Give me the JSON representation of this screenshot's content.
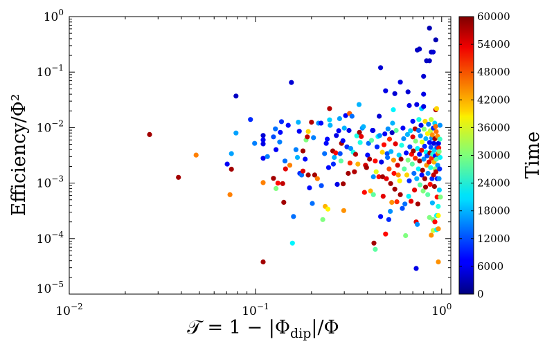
{
  "chart_data": {
    "type": "scatter",
    "title": "",
    "xlabel": "𝒯 = 1 − |Φdip|/Φ",
    "xlabel_main": "𝒯 = 1 − |Φ",
    "xlabel_sub": "dip",
    "xlabel_tail": "|/Φ",
    "ylabel": "Efficiency/Φ²",
    "xscale": "log",
    "yscale": "log",
    "xlim": [
      0.01,
      1.12
    ],
    "ylim": [
      1e-05,
      1
    ],
    "xticks": [
      {
        "value": 0.01,
        "base": "10",
        "exp": "−2"
      },
      {
        "value": 0.1,
        "base": "10",
        "exp": "−1"
      },
      {
        "value": 1,
        "base": "10",
        "exp": "0"
      }
    ],
    "yticks": [
      {
        "value": 1e-05,
        "base": "10",
        "exp": "−5"
      },
      {
        "value": 0.0001,
        "base": "10",
        "exp": "−4"
      },
      {
        "value": 0.001,
        "base": "10",
        "exp": "−3"
      },
      {
        "value": 0.01,
        "base": "10",
        "exp": "−2"
      },
      {
        "value": 0.1,
        "base": "10",
        "exp": "−1"
      },
      {
        "value": 1,
        "base": "10",
        "exp": "0"
      }
    ],
    "grid": false,
    "colorbar": {
      "label": "Time",
      "colormap": "jet",
      "range": [
        0,
        60000
      ],
      "ticks": [
        "0",
        "6000",
        "12000",
        "18000",
        "24000",
        "30000",
        "36000",
        "42000",
        "48000",
        "54000",
        "60000"
      ]
    },
    "points_columns": [
      "T",
      "efficiency",
      "time"
    ],
    "points": [
      [
        0.027,
        0.0075,
        58000
      ],
      [
        0.0386,
        0.00127,
        58000
      ],
      [
        0.048,
        0.0032,
        45000
      ],
      [
        0.0705,
        0.0022,
        7000
      ],
      [
        0.073,
        0.00062,
        45000
      ],
      [
        0.0743,
        0.00178,
        58000
      ],
      [
        0.0743,
        0.0034,
        17000
      ],
      [
        0.0786,
        0.037,
        4000
      ],
      [
        0.0786,
        0.008,
        17000
      ],
      [
        0.094,
        0.014,
        10000
      ],
      [
        0.099,
        0.0052,
        15000
      ],
      [
        0.11,
        0.0072,
        5000
      ],
      [
        0.11,
        0.006,
        7000
      ],
      [
        0.11,
        0.0051,
        6000
      ],
      [
        0.11,
        0.0028,
        7000
      ],
      [
        0.11,
        0.00102,
        45000
      ],
      [
        0.11,
        3.8e-05,
        58000
      ],
      [
        0.116,
        0.003,
        15000
      ],
      [
        0.125,
        0.0068,
        12000
      ],
      [
        0.125,
        0.00122,
        58000
      ],
      [
        0.128,
        0.0095,
        14000
      ],
      [
        0.129,
        0.004,
        7000
      ],
      [
        0.129,
        0.0008,
        30000
      ],
      [
        0.132,
        0.001,
        52000
      ],
      [
        0.135,
        0.0055,
        15000
      ],
      [
        0.136,
        0.0082,
        8000
      ],
      [
        0.138,
        0.0128,
        10000
      ],
      [
        0.14,
        0.00098,
        56000
      ],
      [
        0.142,
        0.00045,
        58000
      ],
      [
        0.144,
        0.0025,
        14000
      ],
      [
        0.145,
        0.0018,
        54000
      ],
      [
        0.15,
        0.011,
        8000
      ],
      [
        0.153,
        0.0021,
        45000
      ],
      [
        0.156,
        0.065,
        5000
      ],
      [
        0.158,
        8.3e-05,
        22000
      ],
      [
        0.16,
        0.00025,
        14000
      ],
      [
        0.165,
        0.004,
        15000
      ],
      [
        0.168,
        0.0029,
        18000
      ],
      [
        0.17,
        0.0125,
        18000
      ],
      [
        0.172,
        0.0086,
        7000
      ],
      [
        0.173,
        0.0015,
        10000
      ],
      [
        0.177,
        0.0014,
        14000
      ],
      [
        0.18,
        0.0038,
        58000
      ],
      [
        0.18,
        0.00165,
        54000
      ],
      [
        0.185,
        0.0027,
        8000
      ],
      [
        0.187,
        0.006,
        30000
      ],
      [
        0.19,
        0.0068,
        56000
      ],
      [
        0.192,
        0.0085,
        40000
      ],
      [
        0.192,
        0.0014,
        58000
      ],
      [
        0.195,
        0.00082,
        8000
      ],
      [
        0.2,
        0.0125,
        57000
      ],
      [
        0.202,
        0.00043,
        14000
      ],
      [
        0.205,
        0.0066,
        15000
      ],
      [
        0.208,
        0.0014,
        58000
      ],
      [
        0.215,
        0.0012,
        45000
      ],
      [
        0.218,
        0.012,
        16000
      ],
      [
        0.225,
        0.012,
        8000
      ],
      [
        0.226,
        0.0009,
        12000
      ],
      [
        0.23,
        0.00022,
        30000
      ],
      [
        0.235,
        0.0034,
        14000
      ],
      [
        0.237,
        0.00038,
        42000
      ],
      [
        0.24,
        0.0052,
        8000
      ],
      [
        0.243,
        0.0062,
        8000
      ],
      [
        0.245,
        0.00034,
        38000
      ],
      [
        0.247,
        0.0019,
        8000
      ],
      [
        0.25,
        0.0138,
        20000
      ],
      [
        0.252,
        0.011,
        18000
      ],
      [
        0.25,
        0.022,
        57000
      ],
      [
        0.26,
        0.0038,
        58000
      ],
      [
        0.262,
        0.0022,
        10000
      ],
      [
        0.265,
        0.0029,
        18000
      ],
      [
        0.27,
        0.0035,
        52000
      ],
      [
        0.272,
        0.0072,
        6000
      ],
      [
        0.275,
        0.00095,
        6000
      ],
      [
        0.28,
        0.0088,
        7000
      ],
      [
        0.283,
        0.0145,
        17000
      ],
      [
        0.285,
        0.0034,
        12000
      ],
      [
        0.288,
        0.0025,
        28000
      ],
      [
        0.29,
        0.0052,
        58000
      ],
      [
        0.295,
        0.0058,
        7000
      ],
      [
        0.296,
        0.00097,
        58000
      ],
      [
        0.298,
        0.00032,
        44000
      ],
      [
        0.3,
        0.0098,
        18000
      ],
      [
        0.305,
        0.0165,
        7000
      ],
      [
        0.31,
        0.0045,
        10000
      ],
      [
        0.315,
        0.0015,
        58000
      ],
      [
        0.318,
        0.0089,
        6000
      ],
      [
        0.32,
        0.018,
        47000
      ],
      [
        0.322,
        0.0023,
        50000
      ],
      [
        0.325,
        0.0042,
        16000
      ],
      [
        0.33,
        0.016,
        14000
      ],
      [
        0.335,
        0.0036,
        24000
      ],
      [
        0.34,
        0.0016,
        57000
      ],
      [
        0.345,
        0.0033,
        57000
      ],
      [
        0.35,
        0.0071,
        24000
      ],
      [
        0.355,
        0.0022,
        42000
      ],
      [
        0.36,
        0.026,
        18000
      ],
      [
        0.362,
        0.0082,
        58000
      ],
      [
        0.365,
        0.0054,
        24000
      ],
      [
        0.37,
        0.0069,
        54000
      ],
      [
        0.375,
        0.0098,
        16000
      ],
      [
        0.38,
        0.0104,
        18000
      ],
      [
        0.385,
        0.00068,
        52000
      ],
      [
        0.39,
        0.0021,
        55000
      ],
      [
        0.395,
        0.0019,
        58000
      ],
      [
        0.4,
        0.0032,
        8000
      ],
      [
        0.405,
        0.0052,
        14000
      ],
      [
        0.41,
        0.0027,
        58000
      ],
      [
        0.415,
        0.00072,
        42000
      ],
      [
        0.42,
        0.0059,
        28000
      ],
      [
        0.425,
        0.0089,
        8000
      ],
      [
        0.428,
        0.0089,
        6000
      ],
      [
        0.43,
        0.00062,
        28000
      ],
      [
        0.43,
        0.0013,
        16000
      ],
      [
        0.433,
        8.3e-05,
        58000
      ],
      [
        0.44,
        6.4e-05,
        28000
      ],
      [
        0.44,
        0.0025,
        52000
      ],
      [
        0.445,
        0.0016,
        36000
      ],
      [
        0.45,
        0.0045,
        10000
      ],
      [
        0.455,
        0.0069,
        22000
      ],
      [
        0.46,
        0.0013,
        52000
      ],
      [
        0.462,
        0.016,
        5000
      ],
      [
        0.465,
        0.0072,
        16000
      ],
      [
        0.47,
        0.12,
        5000
      ],
      [
        0.47,
        0.00025,
        8000
      ],
      [
        0.475,
        0.0024,
        6000
      ],
      [
        0.48,
        0.0036,
        40000
      ],
      [
        0.482,
        0.0013,
        58000
      ],
      [
        0.485,
        0.00058,
        54000
      ],
      [
        0.49,
        0.0049,
        52000
      ],
      [
        0.495,
        0.0077,
        7000
      ],
      [
        0.5,
        0.046,
        6000
      ],
      [
        0.5,
        0.000121,
        52000
      ],
      [
        0.505,
        0.0012,
        54000
      ],
      [
        0.51,
        0.0034,
        12000
      ],
      [
        0.512,
        0.0029,
        14000
      ],
      [
        0.515,
        0.0095,
        16000
      ],
      [
        0.52,
        0.00022,
        10000
      ],
      [
        0.522,
        0.0018,
        48000
      ],
      [
        0.525,
        0.0062,
        50000
      ],
      [
        0.53,
        0.00031,
        16000
      ],
      [
        0.532,
        0.00098,
        58000
      ],
      [
        0.535,
        0.0037,
        18000
      ],
      [
        0.54,
        0.00045,
        44000
      ],
      [
        0.542,
        0.0081,
        4000
      ],
      [
        0.545,
        0.012,
        18000
      ],
      [
        0.55,
        0.021,
        22000
      ],
      [
        0.552,
        0.0026,
        44000
      ],
      [
        0.555,
        0.0015,
        52000
      ],
      [
        0.56,
        0.041,
        5000
      ],
      [
        0.56,
        0.00078,
        58000
      ],
      [
        0.565,
        0.0051,
        54000
      ],
      [
        0.57,
        0.0089,
        28000
      ],
      [
        0.575,
        0.00046,
        50000
      ],
      [
        0.58,
        0.0021,
        55000
      ],
      [
        0.585,
        0.0014,
        44000
      ],
      [
        0.59,
        0.0032,
        20000
      ],
      [
        0.595,
        0.0011,
        38000
      ],
      [
        0.6,
        0.066,
        6000
      ],
      [
        0.6,
        0.00062,
        58000
      ],
      [
        0.605,
        0.0027,
        58000
      ],
      [
        0.61,
        0.0048,
        24000
      ],
      [
        0.615,
        0.00035,
        12000
      ],
      [
        0.62,
        0.0098,
        7000
      ],
      [
        0.625,
        0.0063,
        16000
      ],
      [
        0.63,
        0.0018,
        28000
      ],
      [
        0.635,
        0.00042,
        14000
      ],
      [
        0.64,
        0.000113,
        30000
      ],
      [
        0.645,
        0.0035,
        8000
      ],
      [
        0.65,
        0.0014,
        40000
      ],
      [
        0.655,
        0.0075,
        18000
      ],
      [
        0.66,
        0.044,
        5000
      ],
      [
        0.66,
        0.0026,
        30000
      ],
      [
        0.665,
        0.00058,
        22000
      ],
      [
        0.67,
        0.025,
        6000
      ],
      [
        0.67,
        0.0011,
        10000
      ],
      [
        0.675,
        0.0045,
        12000
      ],
      [
        0.68,
        0.0088,
        20000
      ],
      [
        0.685,
        0.00047,
        54000
      ],
      [
        0.69,
        0.0033,
        52000
      ],
      [
        0.695,
        0.0022,
        28000
      ],
      [
        0.7,
        0.013,
        8000
      ],
      [
        0.7,
        0.0068,
        54000
      ],
      [
        0.705,
        0.0038,
        58000
      ],
      [
        0.71,
        0.0015,
        14000
      ],
      [
        0.715,
        0.00075,
        54000
      ],
      [
        0.72,
        0.0095,
        57000
      ],
      [
        0.722,
        0.0028,
        50000
      ],
      [
        0.725,
        0.0057,
        30000
      ],
      [
        0.73,
        2.9e-05,
        6000
      ],
      [
        0.73,
        0.0002,
        54000
      ],
      [
        0.735,
        0.026,
        6000
      ],
      [
        0.735,
        0.0012,
        18000
      ],
      [
        0.74,
        0.00018,
        16000
      ],
      [
        0.74,
        0.25,
        4000
      ],
      [
        0.742,
        0.0042,
        22000
      ],
      [
        0.745,
        0.00042,
        58000
      ],
      [
        0.75,
        0.0018,
        22000
      ],
      [
        0.752,
        0.0089,
        14000
      ],
      [
        0.755,
        0.014,
        24000
      ],
      [
        0.76,
        0.26,
        4000
      ],
      [
        0.76,
        0.0033,
        8000
      ],
      [
        0.762,
        0.0025,
        58000
      ],
      [
        0.765,
        0.00093,
        28000
      ],
      [
        0.77,
        0.0071,
        16000
      ],
      [
        0.775,
        0.011,
        6000
      ],
      [
        0.78,
        0.022,
        20000
      ],
      [
        0.78,
        0.0039,
        54000
      ],
      [
        0.782,
        0.0014,
        8000
      ],
      [
        0.785,
        0.0055,
        36000
      ],
      [
        0.79,
        0.0017,
        58000
      ],
      [
        0.795,
        0.00072,
        30000
      ],
      [
        0.8,
        0.084,
        5000
      ],
      [
        0.8,
        0.04,
        6000
      ],
      [
        0.8,
        0.024,
        6000
      ],
      [
        0.802,
        0.0027,
        16000
      ],
      [
        0.805,
        0.0094,
        30000
      ],
      [
        0.81,
        0.0046,
        10000
      ],
      [
        0.812,
        0.0012,
        58000
      ],
      [
        0.815,
        0.013,
        40000
      ],
      [
        0.82,
        0.00085,
        58000
      ],
      [
        0.822,
        0.0063,
        18000
      ],
      [
        0.825,
        0.0036,
        22000
      ],
      [
        0.83,
        0.16,
        4000
      ],
      [
        0.83,
        0.0021,
        44000
      ],
      [
        0.835,
        0.0031,
        12000
      ],
      [
        0.84,
        0.0078,
        38000
      ],
      [
        0.842,
        0.00062,
        28000
      ],
      [
        0.845,
        0.0015,
        16000
      ],
      [
        0.85,
        0.0115,
        14000
      ],
      [
        0.855,
        0.0024,
        54000
      ],
      [
        0.86,
        0.62,
        3000
      ],
      [
        0.86,
        0.16,
        4000
      ],
      [
        0.86,
        0.00024,
        30000
      ],
      [
        0.862,
        0.0054,
        8000
      ],
      [
        0.865,
        0.0035,
        58000
      ],
      [
        0.868,
        0.00095,
        52000
      ],
      [
        0.87,
        0.0088,
        34000
      ],
      [
        0.872,
        0.0019,
        24000
      ],
      [
        0.875,
        0.0044,
        12000
      ],
      [
        0.878,
        0.014,
        34000
      ],
      [
        0.88,
        0.23,
        4000
      ],
      [
        0.88,
        0.000115,
        44000
      ],
      [
        0.882,
        0.0028,
        50000
      ],
      [
        0.885,
        0.0065,
        16000
      ],
      [
        0.888,
        0.0012,
        10000
      ],
      [
        0.89,
        0.0074,
        44000
      ],
      [
        0.892,
        0.00044,
        18000
      ],
      [
        0.895,
        0.0033,
        24000
      ],
      [
        0.9,
        0.23,
        5000
      ],
      [
        0.9,
        0.00022,
        30000
      ],
      [
        0.9,
        0.00014,
        34000
      ],
      [
        0.902,
        0.0098,
        10000
      ],
      [
        0.905,
        0.0014,
        56000
      ],
      [
        0.908,
        0.0052,
        6000
      ],
      [
        0.91,
        0.0024,
        42000
      ],
      [
        0.912,
        0.0039,
        20000
      ],
      [
        0.915,
        0.00087,
        58000
      ],
      [
        0.918,
        0.012,
        20000
      ],
      [
        0.92,
        0.0002,
        52000
      ],
      [
        0.92,
        0.0063,
        58000
      ],
      [
        0.922,
        0.0018,
        30000
      ],
      [
        0.925,
        0.0031,
        8000
      ],
      [
        0.928,
        0.0105,
        46000
      ],
      [
        0.93,
        0.38,
        3000
      ],
      [
        0.93,
        0.021,
        57000
      ],
      [
        0.932,
        0.0016,
        56000
      ],
      [
        0.935,
        0.0085,
        46000
      ],
      [
        0.938,
        0.0027,
        28000
      ],
      [
        0.94,
        0.022,
        40000
      ],
      [
        0.94,
        0.00026,
        22000
      ],
      [
        0.94,
        0.000145,
        22000
      ],
      [
        0.942,
        0.0044,
        12000
      ],
      [
        0.945,
        0.00056,
        52000
      ],
      [
        0.948,
        0.0012,
        8000
      ],
      [
        0.95,
        0.007,
        44000
      ],
      [
        0.952,
        0.0021,
        16000
      ],
      [
        0.955,
        0.0034,
        46000
      ],
      [
        0.958,
        0.00038,
        24000
      ],
      [
        0.96,
        0.00026,
        38000
      ],
      [
        0.96,
        3.8e-05,
        44000
      ],
      [
        0.96,
        0.00015,
        44000
      ],
      [
        0.962,
        0.0052,
        6000
      ],
      [
        0.965,
        0.0043,
        52000
      ],
      [
        0.968,
        0.0012,
        16000
      ],
      [
        0.97,
        0.0037,
        30000
      ],
      [
        0.972,
        0.00075,
        20000
      ],
      [
        0.975,
        0.0018,
        10000
      ],
      [
        0.978,
        0.0062,
        26000
      ],
      [
        0.98,
        0.011,
        16000
      ],
      [
        0.982,
        0.0029,
        22000
      ],
      [
        0.985,
        0.00056,
        30000
      ]
    ]
  }
}
